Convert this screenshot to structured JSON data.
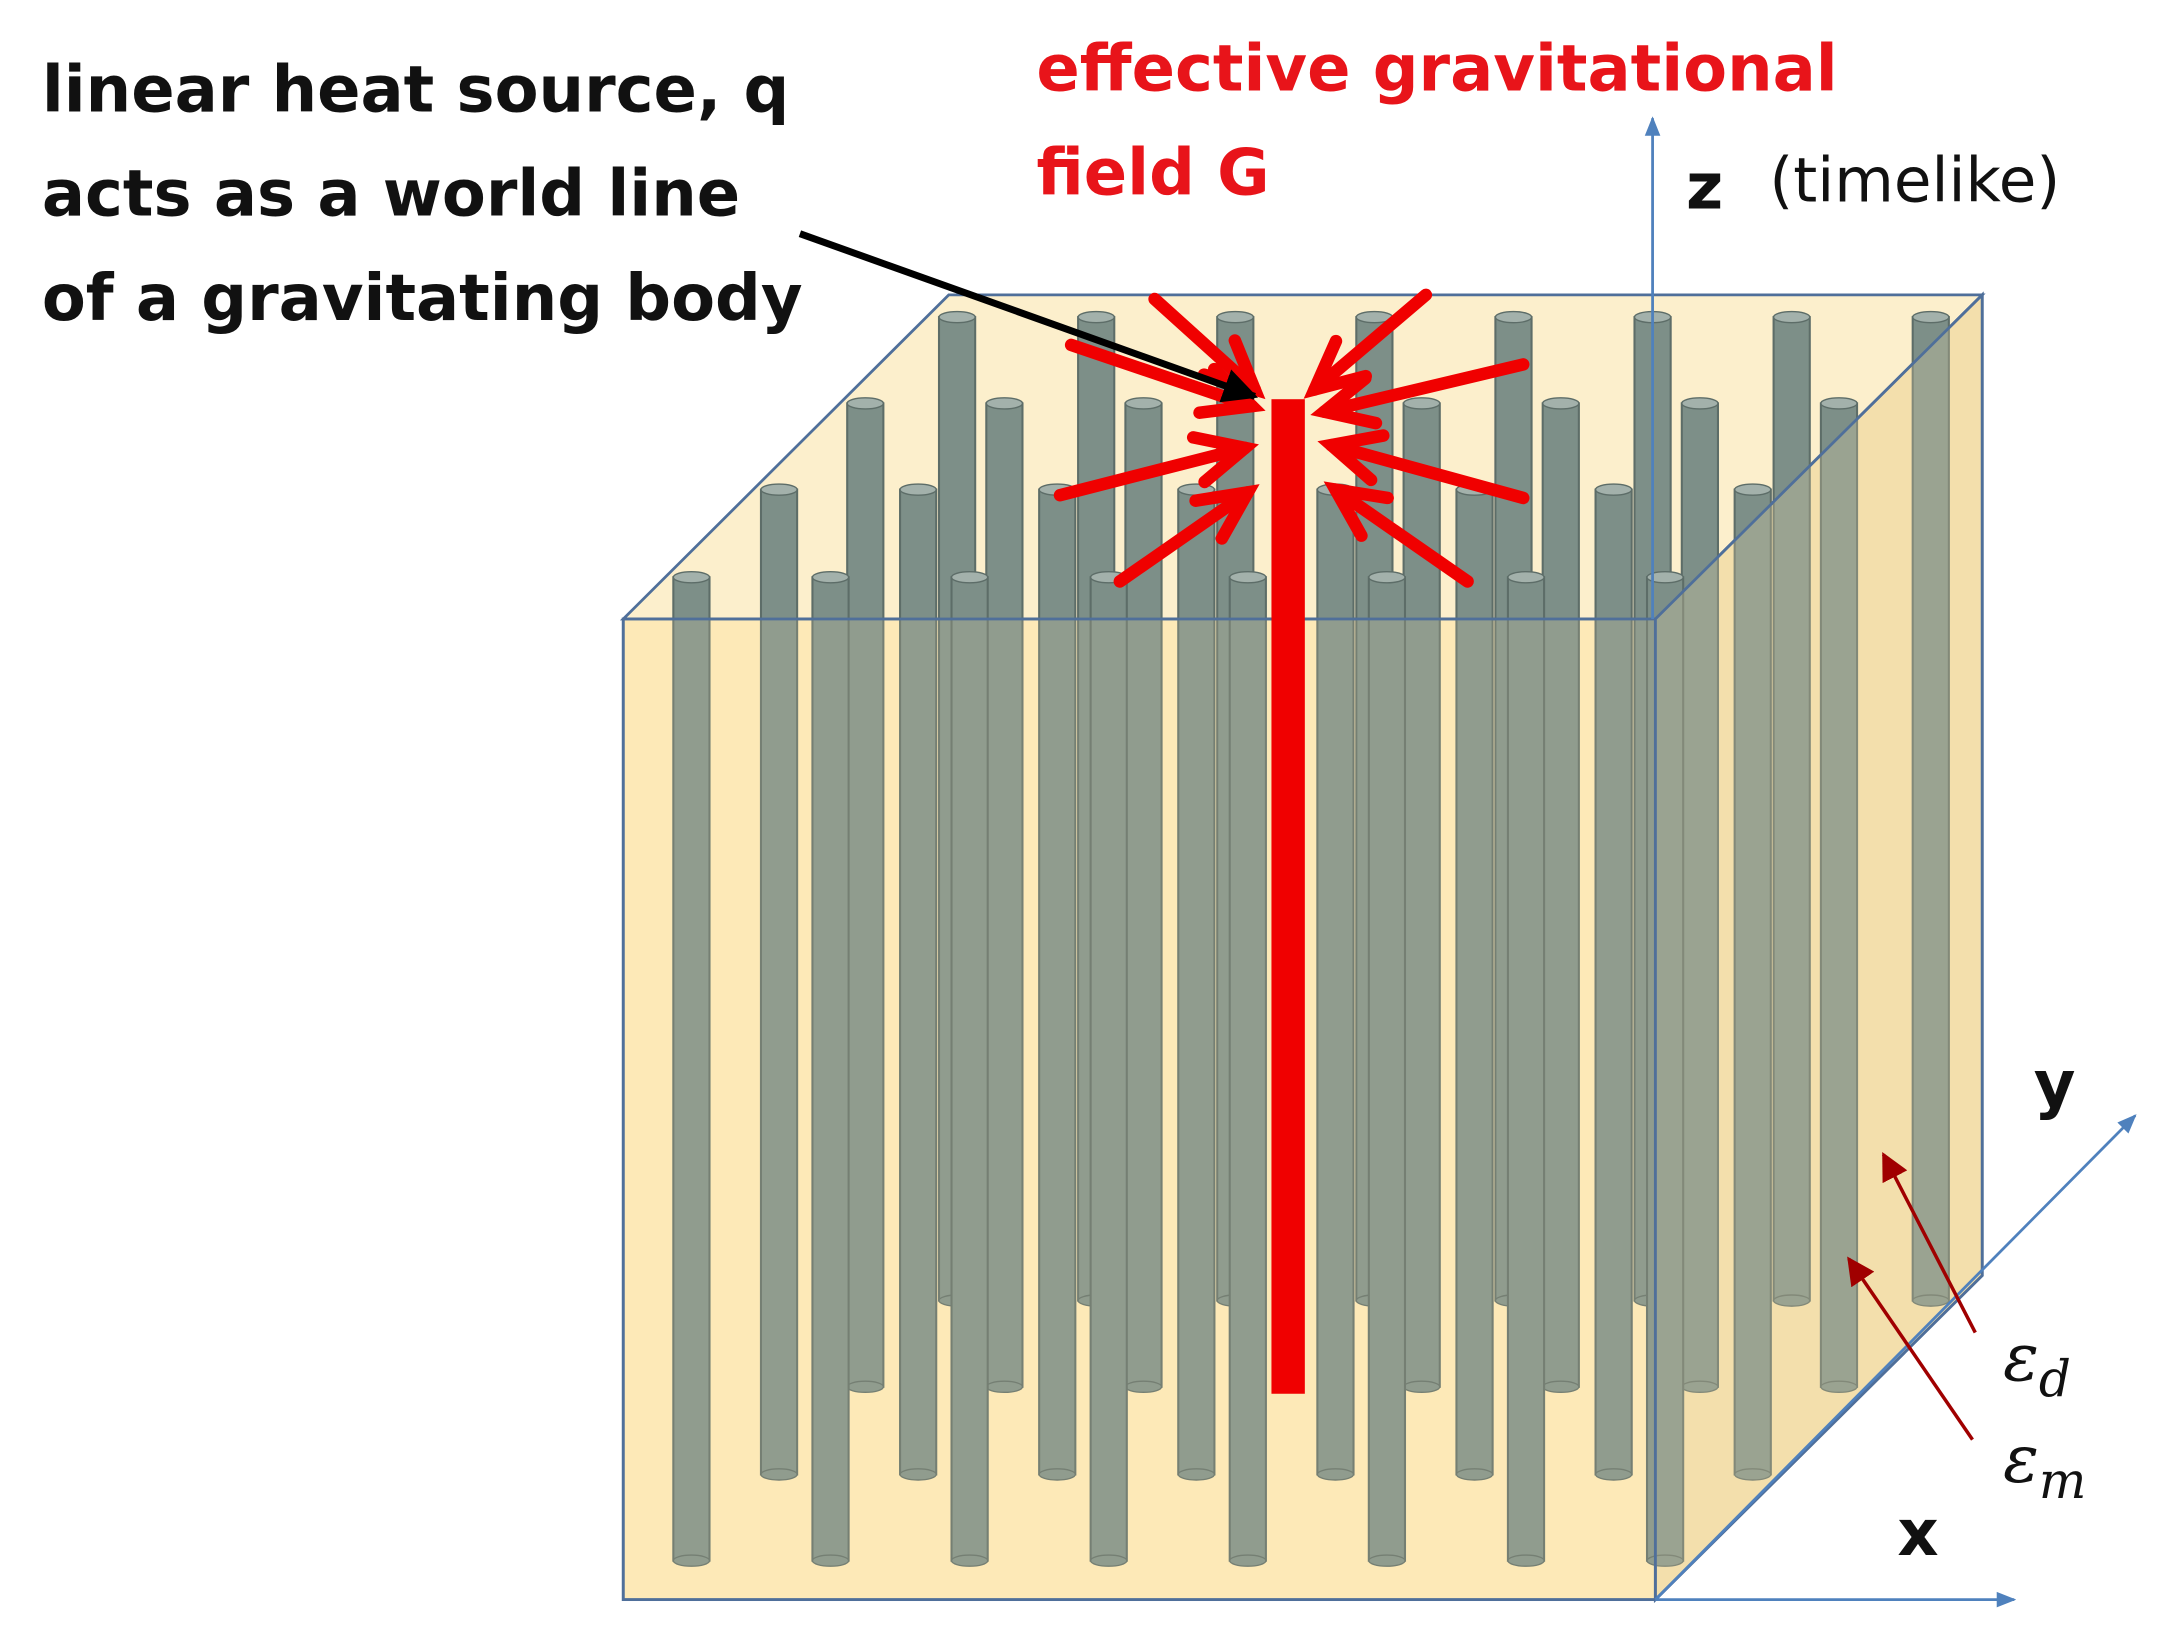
{
  "annotations": {
    "heat_source": [
      "linear heat source, q",
      "acts as a world line",
      "of a gravitating body"
    ],
    "field": [
      "effective gravitational",
      "field G"
    ]
  },
  "axes": {
    "z": {
      "label": "z",
      "note": "(timelike)"
    },
    "y": {
      "label": "y"
    },
    "x": {
      "label": "x"
    }
  },
  "permittivities": [
    {
      "symbol": "ε",
      "subscript": "d"
    },
    {
      "symbol": "ε",
      "subscript": "m"
    }
  ]
}
